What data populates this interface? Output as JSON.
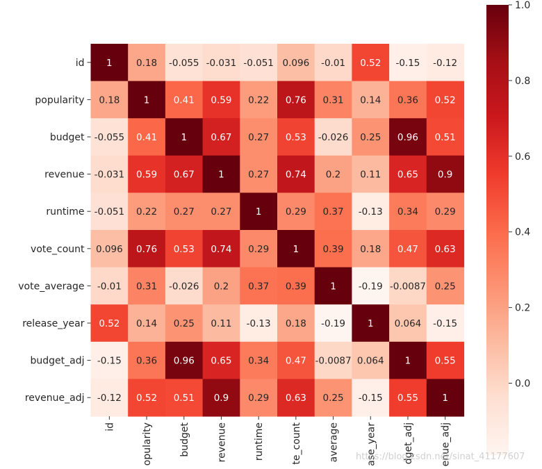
{
  "chart_data": {
    "type": "heatmap",
    "title": "",
    "colormap": "Reds",
    "colors": {
      "low": "#fff5f0",
      "high": "#67000d"
    },
    "labels": [
      "id",
      "popularity",
      "budget",
      "revenue",
      "runtime",
      "vote_count",
      "vote_average",
      "release_year",
      "budget_adj",
      "revenue_adj"
    ],
    "x_tick_labels": [
      "id",
      "opularity",
      "budget",
      "revenue",
      "runtime",
      "te_count",
      "average",
      "ase_year",
      "dget_adj",
      "enue_adj"
    ],
    "values": [
      [
        1,
        0.18,
        -0.055,
        -0.031,
        -0.051,
        0.096,
        -0.01,
        0.52,
        -0.15,
        -0.12
      ],
      [
        0.18,
        1,
        0.41,
        0.59,
        0.22,
        0.76,
        0.31,
        0.14,
        0.36,
        0.52
      ],
      [
        -0.055,
        0.41,
        1,
        0.67,
        0.27,
        0.53,
        -0.026,
        0.25,
        0.96,
        0.51
      ],
      [
        -0.031,
        0.59,
        0.67,
        1,
        0.27,
        0.74,
        0.2,
        0.11,
        0.65,
        0.9
      ],
      [
        -0.051,
        0.22,
        0.27,
        0.27,
        1,
        0.29,
        0.37,
        -0.13,
        0.34,
        0.29
      ],
      [
        0.096,
        0.76,
        0.53,
        0.74,
        0.29,
        1,
        0.39,
        0.18,
        0.47,
        0.63
      ],
      [
        -0.01,
        0.31,
        -0.026,
        0.2,
        0.37,
        0.39,
        1,
        -0.19,
        -0.0087,
        0.25
      ],
      [
        0.52,
        0.14,
        0.25,
        0.11,
        -0.13,
        0.18,
        -0.19,
        1,
        0.064,
        -0.15
      ],
      [
        -0.15,
        0.36,
        0.96,
        0.65,
        0.34,
        0.47,
        -0.0087,
        0.064,
        1,
        0.55
      ],
      [
        -0.12,
        0.52,
        0.51,
        0.9,
        0.29,
        0.63,
        0.25,
        -0.15,
        0.55,
        1
      ]
    ],
    "value_labels": [
      [
        "1",
        "0.18",
        "-0.055",
        "-0.031",
        "-0.051",
        "0.096",
        "-0.01",
        "0.52",
        "-0.15",
        "-0.12"
      ],
      [
        "0.18",
        "1",
        "0.41",
        "0.59",
        "0.22",
        "0.76",
        "0.31",
        "0.14",
        "0.36",
        "0.52"
      ],
      [
        "-0.055",
        "0.41",
        "1",
        "0.67",
        "0.27",
        "0.53",
        "-0.026",
        "0.25",
        "0.96",
        "0.51"
      ],
      [
        "-0.031",
        "0.59",
        "0.67",
        "1",
        "0.27",
        "0.74",
        "0.2",
        "0.11",
        "0.65",
        "0.9"
      ],
      [
        "-0.051",
        "0.22",
        "0.27",
        "0.27",
        "1",
        "0.29",
        "0.37",
        "-0.13",
        "0.34",
        "0.29"
      ],
      [
        "0.096",
        "0.76",
        "0.53",
        "0.74",
        "0.29",
        "1",
        "0.39",
        "0.18",
        "0.47",
        "0.63"
      ],
      [
        "-0.01",
        "0.31",
        "-0.026",
        "0.2",
        "0.37",
        "0.39",
        "1",
        "-0.19",
        "-0.0087",
        "0.25"
      ],
      [
        "0.52",
        "0.14",
        "0.25",
        "0.11",
        "-0.13",
        "0.18",
        "-0.19",
        "1",
        "0.064",
        "-0.15"
      ],
      [
        "-0.15",
        "0.36",
        "0.96",
        "0.65",
        "0.34",
        "0.47",
        "-0.0087",
        "0.064",
        "1",
        "0.55"
      ],
      [
        "-0.12",
        "0.52",
        "0.51",
        "0.9",
        "0.29",
        "0.63",
        "0.25",
        "-0.15",
        "0.55",
        "1"
      ]
    ],
    "vmin": -0.19,
    "vmax": 1.0,
    "colorbar": {
      "ticks": [
        1.0,
        0.8,
        0.6,
        0.4,
        0.2,
        0.0
      ],
      "tick_labels": [
        "1.0",
        "0.8",
        "0.6",
        "0.4",
        "0.2",
        "0.0"
      ]
    }
  },
  "watermark": "https://blog.csdn.net/sinat_41177607"
}
